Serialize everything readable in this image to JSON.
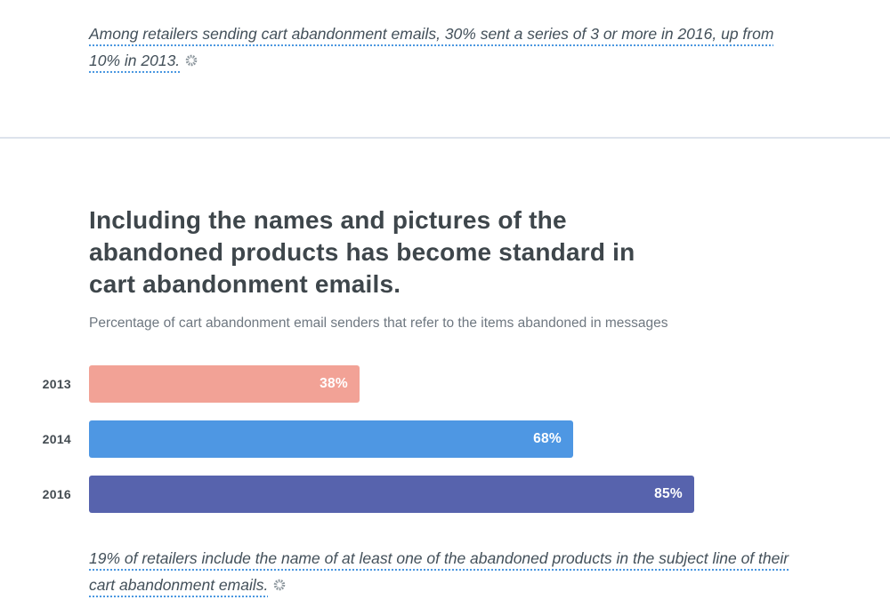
{
  "top_callout": {
    "text": "Among retailers sending cart abandonment emails, 30% sent a series of 3 or more in 2016, up from 10% in 2013.",
    "icon": "gear-icon"
  },
  "section": {
    "heading": "Including the names and pictures of the abandoned products has become standard in cart abandonment emails.",
    "subtitle": "Percentage of cart abandonment email senders that refer to the items abandoned in messages"
  },
  "chart_data": {
    "type": "bar",
    "orientation": "horizontal",
    "title": "Including the names and pictures of the abandoned products has become standard in cart abandonment emails.",
    "subtitle": "Percentage of cart abandonment email senders that refer to the items abandoned in messages",
    "categories": [
      "2013",
      "2014",
      "2016"
    ],
    "values": [
      38,
      68,
      85
    ],
    "value_labels": [
      "38%",
      "68%",
      "85%"
    ],
    "bar_colors": [
      "#f2a296",
      "#4e97e3",
      "#5763ad"
    ],
    "xlim": [
      0,
      100
    ],
    "grid": false,
    "value_label_position": "inside-right",
    "category_label_position": "left"
  },
  "bottom_callout": {
    "text": "19% of retailers include the name of at least one of the abandoned products in the subject line of their cart abandonment emails.",
    "icon": "gear-icon"
  },
  "colors": {
    "accent_underline": "#4a97e0",
    "divider": "#dde3ec",
    "heading_text": "#3e464b",
    "body_text": "#43505a",
    "subtitle_text": "#6e7780",
    "icon_gray": "#8d979e"
  }
}
